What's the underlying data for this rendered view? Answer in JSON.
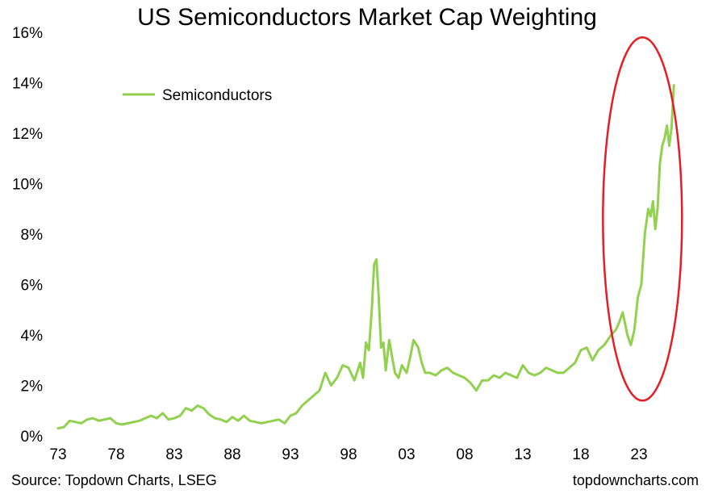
{
  "chart_data": {
    "type": "line",
    "title": "US Semiconductors Market Cap Weighting",
    "xlabel": "",
    "ylabel": "",
    "x_range": [
      1973,
      2026
    ],
    "ylim": [
      0,
      16
    ],
    "y_ticks": [
      0,
      2,
      4,
      6,
      8,
      10,
      12,
      14,
      16
    ],
    "y_tick_labels": [
      "0%",
      "2%",
      "4%",
      "6%",
      "8%",
      "10%",
      "12%",
      "14%",
      "16%"
    ],
    "x_ticks": [
      1973,
      1978,
      1983,
      1988,
      1993,
      1998,
      2003,
      2008,
      2013,
      2018,
      2023
    ],
    "x_tick_labels": [
      "73",
      "78",
      "83",
      "88",
      "93",
      "98",
      "03",
      "08",
      "13",
      "18",
      "23"
    ],
    "grid": false,
    "legend_position": "top-left",
    "series": [
      {
        "name": "Semiconductors",
        "color": "#92d050",
        "x": [
          1973.0,
          1973.5,
          1974.0,
          1974.5,
          1975.0,
          1975.5,
          1976.0,
          1976.5,
          1977.0,
          1977.5,
          1978.0,
          1978.5,
          1979.0,
          1979.5,
          1980.0,
          1980.5,
          1981.0,
          1981.5,
          1982.0,
          1982.5,
          1983.0,
          1983.5,
          1984.0,
          1984.5,
          1985.0,
          1985.5,
          1986.0,
          1986.5,
          1987.0,
          1987.5,
          1988.0,
          1988.5,
          1989.0,
          1989.5,
          1990.0,
          1990.5,
          1991.0,
          1991.5,
          1992.0,
          1992.5,
          1993.0,
          1993.5,
          1994.0,
          1994.5,
          1995.0,
          1995.5,
          1996.0,
          1996.5,
          1997.0,
          1997.5,
          1998.0,
          1998.5,
          1999.0,
          1999.25,
          1999.5,
          1999.75,
          2000.0,
          2000.2,
          2000.4,
          2000.6,
          2000.8,
          2001.0,
          2001.2,
          2001.5,
          2001.8,
          2002.0,
          2002.3,
          2002.6,
          2003.0,
          2003.3,
          2003.6,
          2004.0,
          2004.3,
          2004.6,
          2005.0,
          2005.5,
          2006.0,
          2006.5,
          2007.0,
          2007.5,
          2008.0,
          2008.5,
          2009.0,
          2009.5,
          2010.0,
          2010.5,
          2011.0,
          2011.5,
          2012.0,
          2012.5,
          2013.0,
          2013.5,
          2014.0,
          2014.5,
          2015.0,
          2015.5,
          2016.0,
          2016.5,
          2017.0,
          2017.5,
          2018.0,
          2018.5,
          2019.0,
          2019.5,
          2020.0,
          2020.3,
          2020.6,
          2021.0,
          2021.3,
          2021.6,
          2022.0,
          2022.3,
          2022.6,
          2022.9,
          2023.2,
          2023.5,
          2023.8,
          2024.0,
          2024.2,
          2024.4,
          2024.6,
          2024.8,
          2025.0,
          2025.2,
          2025.4,
          2025.6,
          2025.8,
          2026.0
        ],
        "y": [
          0.3,
          0.35,
          0.6,
          0.55,
          0.5,
          0.65,
          0.7,
          0.6,
          0.65,
          0.7,
          0.5,
          0.45,
          0.5,
          0.55,
          0.6,
          0.7,
          0.8,
          0.7,
          0.9,
          0.65,
          0.7,
          0.8,
          1.1,
          1.0,
          1.2,
          1.1,
          0.85,
          0.7,
          0.65,
          0.55,
          0.75,
          0.6,
          0.8,
          0.6,
          0.55,
          0.5,
          0.55,
          0.6,
          0.65,
          0.5,
          0.8,
          0.9,
          1.2,
          1.4,
          1.6,
          1.8,
          2.5,
          2.0,
          2.3,
          2.8,
          2.7,
          2.2,
          2.9,
          2.3,
          3.7,
          3.4,
          5.0,
          6.8,
          7.0,
          5.5,
          3.5,
          3.7,
          2.6,
          3.8,
          3.0,
          2.5,
          2.3,
          2.8,
          2.5,
          3.1,
          3.8,
          3.5,
          2.9,
          2.5,
          2.5,
          2.4,
          2.6,
          2.7,
          2.5,
          2.4,
          2.3,
          2.1,
          1.8,
          2.2,
          2.2,
          2.4,
          2.3,
          2.5,
          2.4,
          2.3,
          2.8,
          2.5,
          2.4,
          2.5,
          2.7,
          2.6,
          2.5,
          2.5,
          2.7,
          2.9,
          3.4,
          3.5,
          3.0,
          3.4,
          3.6,
          3.8,
          4.0,
          4.2,
          4.5,
          4.9,
          4.0,
          3.6,
          4.2,
          5.5,
          6.0,
          8.0,
          9.0,
          8.7,
          9.3,
          8.2,
          9.0,
          10.8,
          11.5,
          11.8,
          12.3,
          11.5,
          12.2,
          13.9
        ]
      }
    ],
    "annotation": {
      "shape": "ellipse",
      "color": "#e31e24",
      "x_range": [
        2019.9,
        2026.7
      ],
      "y_range": [
        1.4,
        15.8
      ]
    }
  },
  "footer": {
    "source": "Source: Topdown Charts, LSEG",
    "watermark": "topdowncharts.com"
  }
}
